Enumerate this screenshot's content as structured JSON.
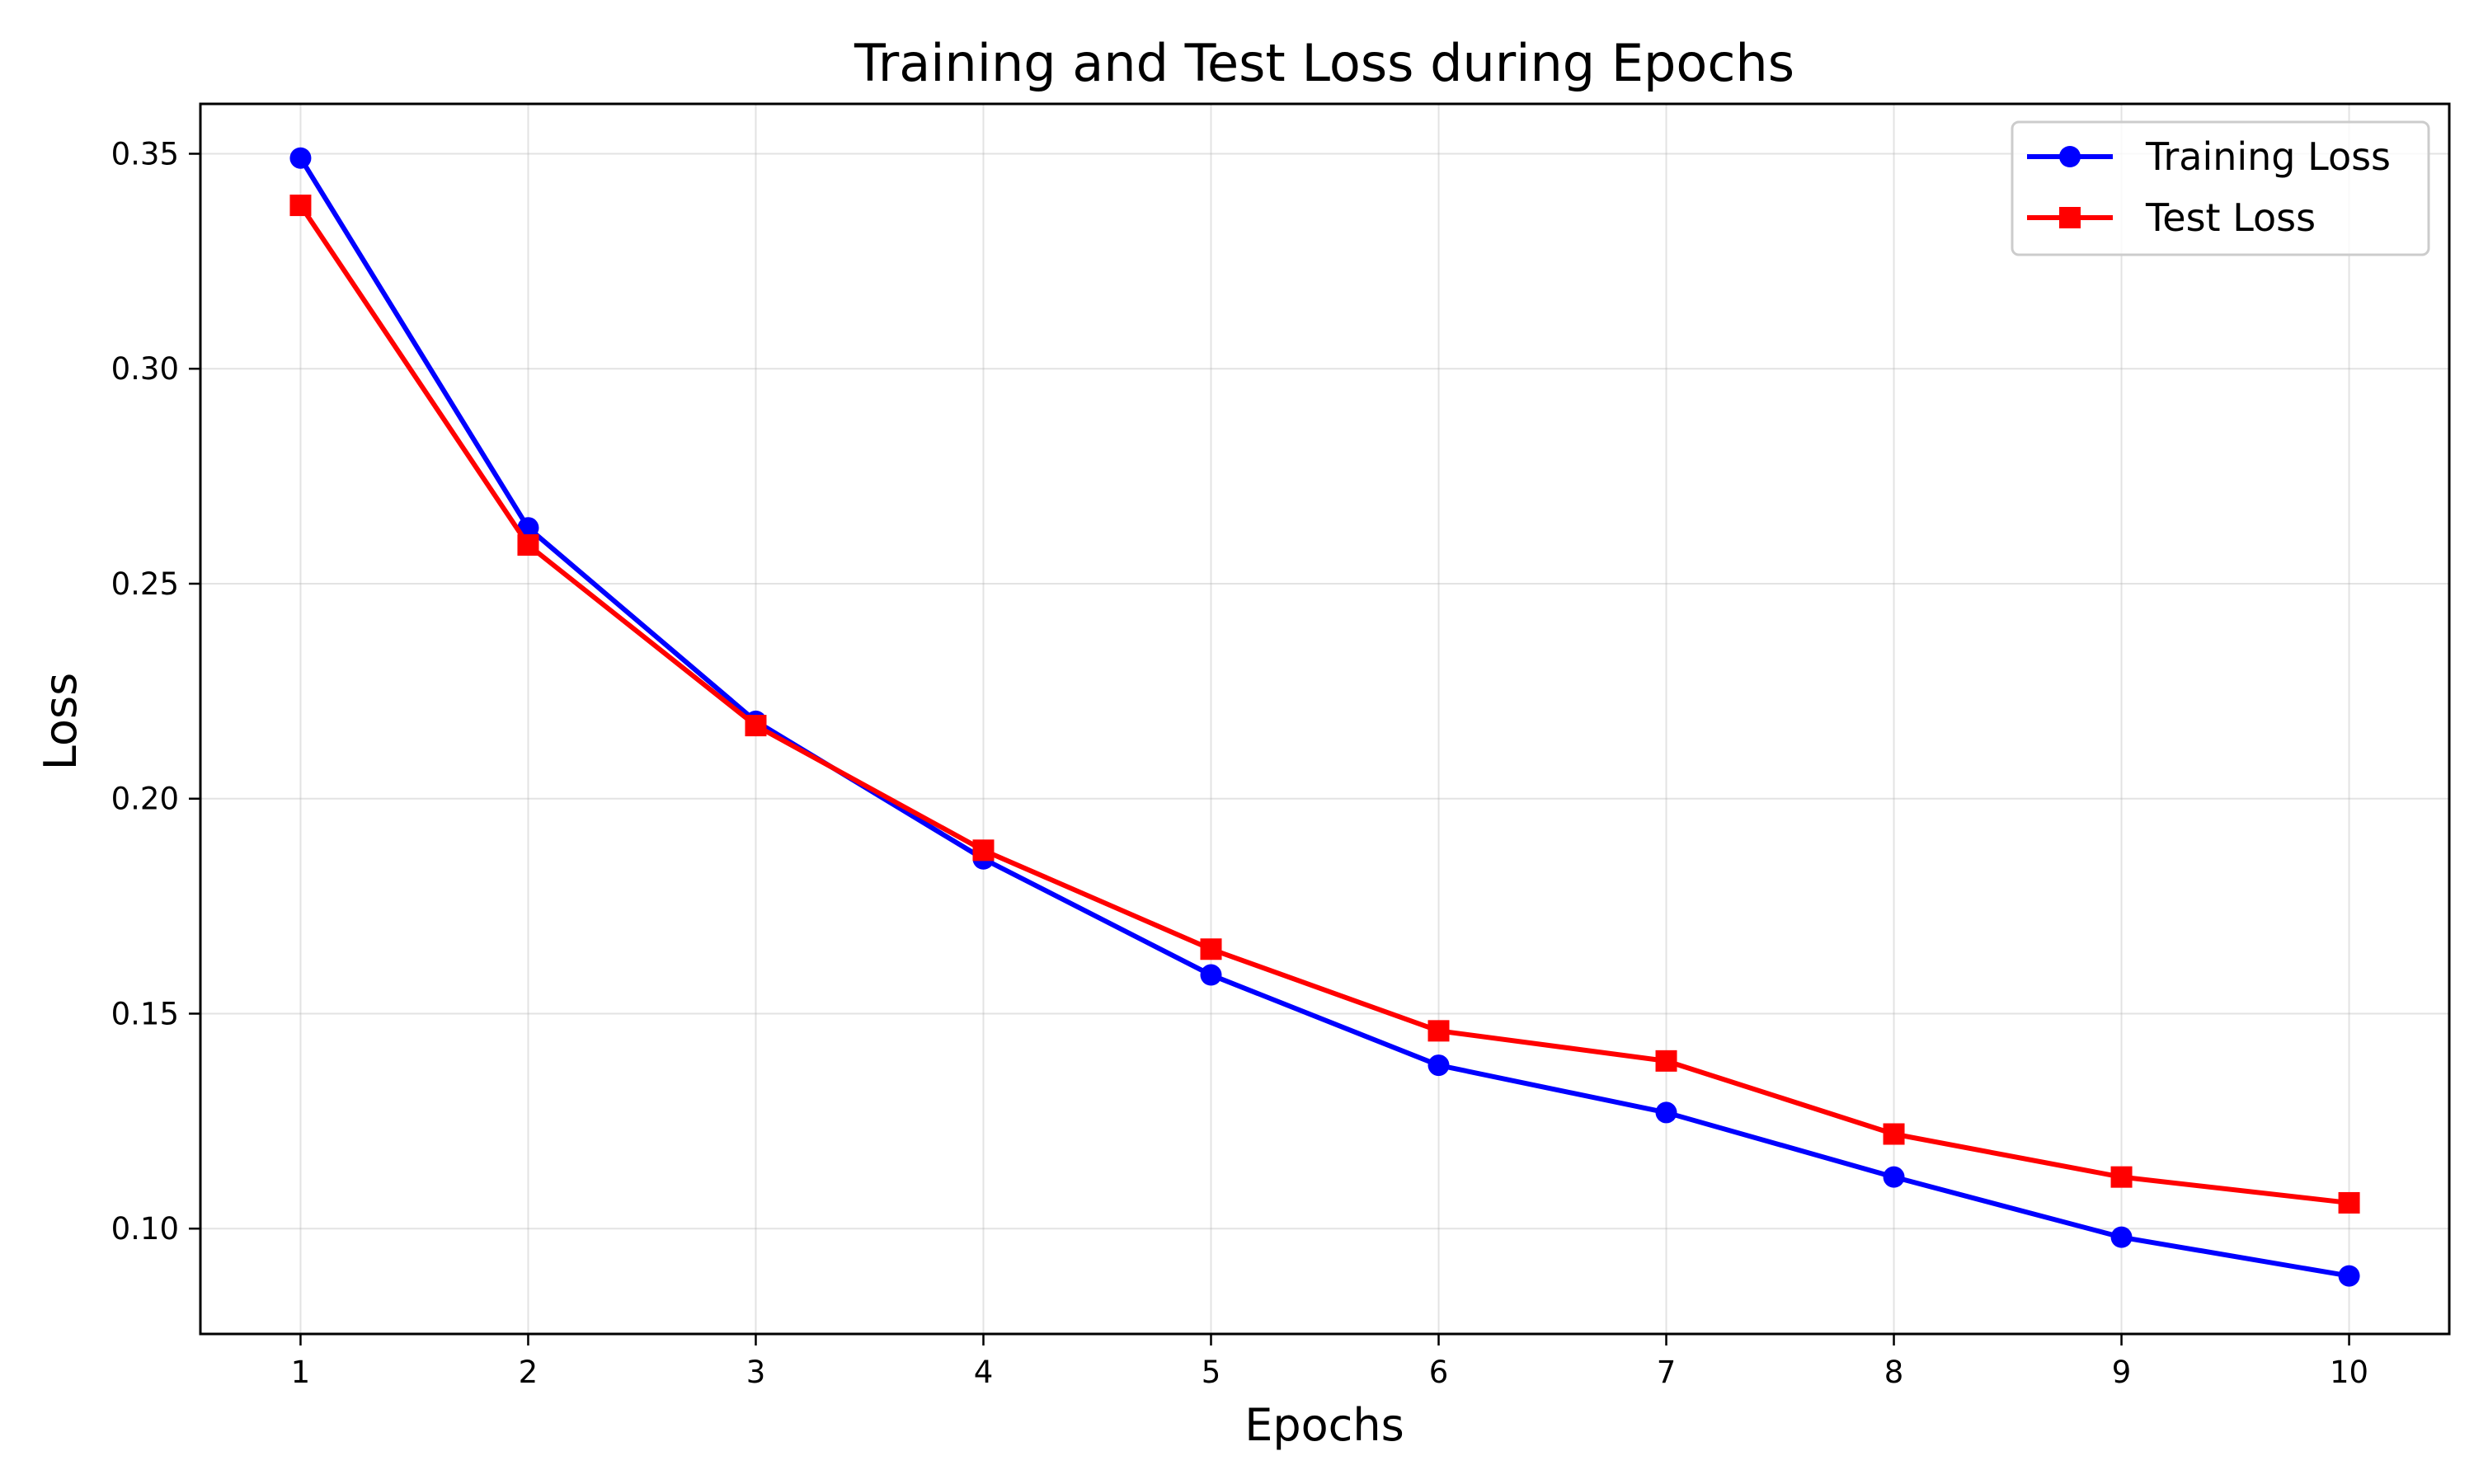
{
  "chart_data": {
    "type": "line",
    "title": "Training and Test Loss during Epochs",
    "xlabel": "Epochs",
    "ylabel": "Loss",
    "x": [
      1,
      2,
      3,
      4,
      5,
      6,
      7,
      8,
      9,
      10
    ],
    "x_ticks": [
      "1",
      "2",
      "3",
      "4",
      "5",
      "6",
      "7",
      "8",
      "9",
      "10"
    ],
    "y_ticks": [
      "0.10",
      "0.15",
      "0.20",
      "0.25",
      "0.30",
      "0.35"
    ],
    "xlim": [
      0.56,
      10.44
    ],
    "ylim": [
      0.0755,
      0.3616
    ],
    "grid": true,
    "legend_position": "top-right",
    "series": [
      {
        "name": "Training Loss",
        "color": "#0000ff",
        "marker": "circle",
        "values": [
          0.349,
          0.263,
          0.218,
          0.186,
          0.159,
          0.138,
          0.127,
          0.112,
          0.098,
          0.089
        ]
      },
      {
        "name": "Test Loss",
        "color": "#ff0000",
        "marker": "square",
        "values": [
          0.338,
          0.259,
          0.217,
          0.188,
          0.165,
          0.146,
          0.139,
          0.122,
          0.112,
          0.106
        ]
      }
    ]
  }
}
